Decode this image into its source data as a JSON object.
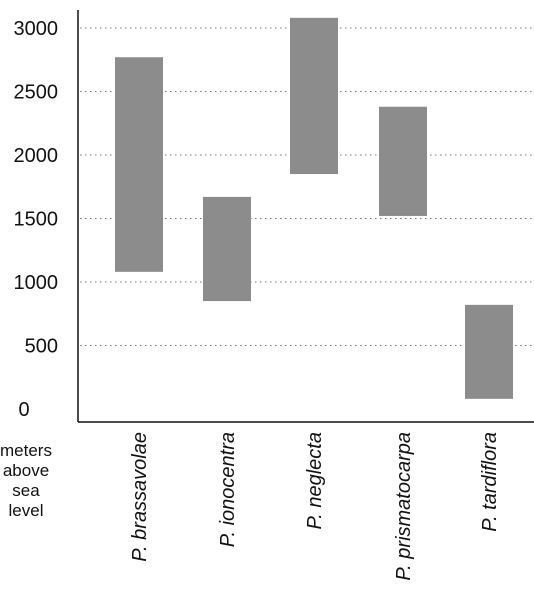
{
  "chart_data": {
    "type": "bar",
    "subtype": "floating-range",
    "categories": [
      "P. brassavolae",
      "P. ionocentra",
      "P. neglecta",
      "P. prismatocarpa",
      "P. tardiflora"
    ],
    "ranges": [
      {
        "low": 1080,
        "high": 2770
      },
      {
        "low": 850,
        "high": 1670
      },
      {
        "low": 1850,
        "high": 3080
      },
      {
        "low": 1520,
        "high": 2380
      },
      {
        "low": 80,
        "high": 820
      }
    ],
    "yticks": [
      0,
      500,
      1000,
      1500,
      2000,
      2500,
      3000
    ],
    "ylim": [
      0,
      3150
    ],
    "ylabel_lines": [
      "meters",
      "above",
      "sea",
      "level"
    ],
    "grid": "dotted horizontal",
    "bar_color": "#8c8c8c",
    "title": "",
    "xlabel": ""
  }
}
